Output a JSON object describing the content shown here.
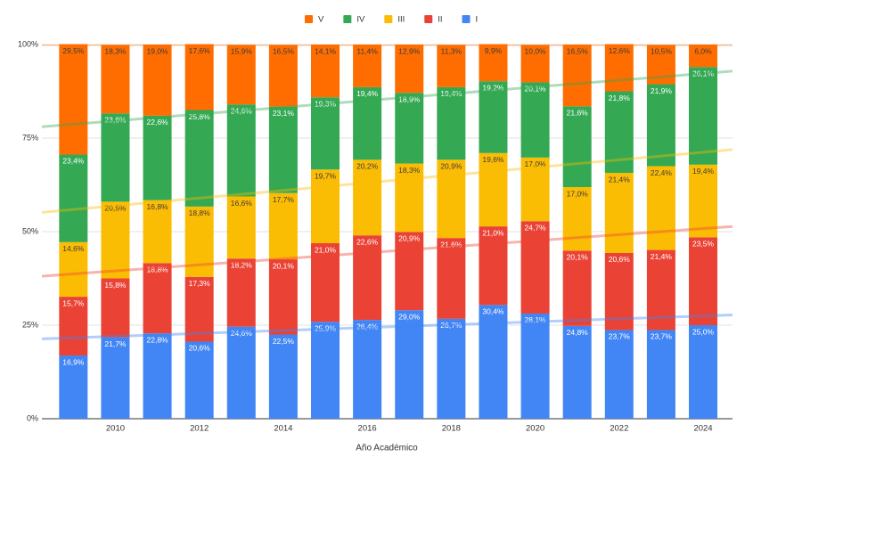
{
  "chart_data": {
    "type": "stacked_bar_100",
    "x": [
      2009,
      2010,
      2011,
      2012,
      2013,
      2014,
      2015,
      2016,
      2017,
      2018,
      2019,
      2020,
      2021,
      2022,
      2023,
      2024
    ],
    "xlim": [
      2008.25,
      2024.7
    ],
    "xticks": [
      2010,
      2012,
      2014,
      2016,
      2018,
      2020,
      2022,
      2024
    ],
    "x_label": "Año Académico",
    "ylim": [
      0,
      100
    ],
    "yticks": [
      {
        "value": 0,
        "label": "0%"
      },
      {
        "value": 25,
        "label": "25%"
      },
      {
        "value": 50,
        "label": "50%"
      },
      {
        "value": 75,
        "label": "75%"
      },
      {
        "value": 100,
        "label": "100%"
      }
    ],
    "grid": true,
    "trendline": true,
    "legend": "top",
    "series": [
      {
        "name": "I",
        "color": "#4285f4",
        "label_color": "#ffffff",
        "values": [
          16.9,
          21.7,
          22.8,
          20.6,
          24.6,
          22.5,
          25.9,
          26.4,
          29.0,
          26.7,
          30.4,
          28.1,
          24.8,
          23.7,
          23.7,
          25.0
        ],
        "value_labels": [
          "16,9%",
          "21,7%",
          "22,8%",
          "20,6%",
          "24,6%",
          "22,5%",
          "25,9%",
          "26,4%",
          "29,0%",
          "26,7%",
          "30,4%",
          "28,1%",
          "24,8%",
          "23,7%",
          "23,7%",
          "25,0%"
        ]
      },
      {
        "name": "II",
        "color": "#ea4335",
        "label_color": "#ffffff",
        "values": [
          15.7,
          15.8,
          18.8,
          17.3,
          18.2,
          20.1,
          21.0,
          22.6,
          20.9,
          21.6,
          21.0,
          24.7,
          20.1,
          20.6,
          21.4,
          23.5
        ],
        "value_labels": [
          "15,7%",
          "15,8%",
          "18,8%",
          "17,3%",
          "18,2%",
          "20,1%",
          "21,0%",
          "22,6%",
          "20,9%",
          "21,6%",
          "21,0%",
          "24,7%",
          "20,1%",
          "20,6%",
          "21,4%",
          "23,5%"
        ]
      },
      {
        "name": "III",
        "color": "#fbbc04",
        "label_color": "#3c3c3c",
        "values": [
          14.6,
          20.5,
          16.8,
          18.8,
          16.6,
          17.7,
          19.7,
          20.2,
          18.3,
          20.9,
          19.6,
          17.0,
          17.0,
          21.4,
          22.4,
          19.4
        ],
        "value_labels": [
          "14,6%",
          "20,5%",
          "16,8%",
          "18,8%",
          "16,6%",
          "17,7%",
          "19,7%",
          "20,2%",
          "18,3%",
          "20,9%",
          "19,6%",
          "17,0%",
          "17,0%",
          "21,4%",
          "22,4%",
          "19,4%"
        ]
      },
      {
        "name": "IV",
        "color": "#34a853",
        "label_color": "#ffffff",
        "values": [
          23.4,
          23.6,
          22.6,
          25.8,
          24.6,
          23.1,
          19.3,
          19.4,
          18.9,
          19.4,
          19.2,
          20.1,
          21.6,
          21.8,
          21.9,
          26.1
        ],
        "value_labels": [
          "23,4%",
          "23,6%",
          "22,6%",
          "25,8%",
          "24,6%",
          "23,1%",
          "19,3%",
          "19,4%",
          "18,9%",
          "19,4%",
          "19,2%",
          "20,1%",
          "21,6%",
          "21,8%",
          "21,9%",
          "26,1%"
        ]
      },
      {
        "name": "V",
        "color": "#ff6d01",
        "label_color": "#3c3c3c",
        "values": [
          29.5,
          18.3,
          19.0,
          17.6,
          15.9,
          16.5,
          14.1,
          11.4,
          12.9,
          11.3,
          9.9,
          10.0,
          16.5,
          12.6,
          10.5,
          6.0
        ],
        "value_labels": [
          "29,5%",
          "18,3%",
          "19,0%",
          "17,6%",
          "15,9%",
          "16,5%",
          "14,1%",
          "11,4%",
          "12,9%",
          "11,3%",
          "9,9%",
          "10,0%",
          "16,5%",
          "12,6%",
          "10,5%",
          "6,0%"
        ]
      }
    ]
  }
}
